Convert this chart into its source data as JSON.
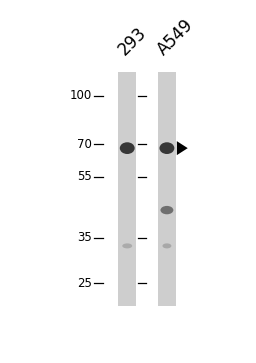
{
  "background_color": "#ffffff",
  "fig_width": 2.56,
  "fig_height": 3.63,
  "dpi": 100,
  "mw_markers": [
    100,
    70,
    55,
    35,
    25
  ],
  "mw_labels": [
    "100 -",
    "70 -",
    "55 -",
    "35 -",
    "25 -"
  ],
  "lane_labels": [
    "293",
    "A549"
  ],
  "lane_label_rotation": 45,
  "lane_bg_color": "#cecece",
  "band_color": "#222222",
  "arrow_color": "#111111",
  "label_fontsize": 10,
  "mw_fontsize": 8.5,
  "lane_label_fontsize": 12
}
